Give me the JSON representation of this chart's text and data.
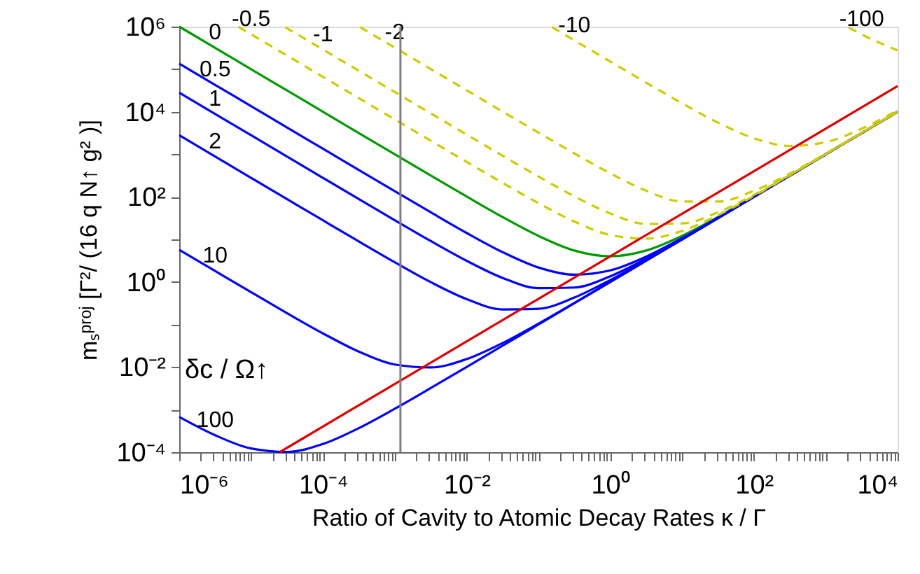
{
  "chart_data": {
    "type": "line",
    "xlabel": "Ratio of Cavity to Atomic Decay Rates κ / Γ",
    "ylabel": "mₛᵖʳᵒʲ [Γ²/ (16 q N↑ g² )]",
    "line_style": "solid",
    "log": "xy",
    "marker": "none",
    "xlim": [
      1e-06,
      10000.0
    ],
    "ylim": [
      0.0001,
      1000000.0
    ],
    "xticks": [
      {
        "value": 1e-06,
        "label": "10⁻⁶"
      },
      {
        "value": 2e-06,
        "label": null
      },
      {
        "value": 3e-06,
        "label": null
      },
      {
        "value": 4e-06,
        "label": null
      },
      {
        "value": 5e-06,
        "label": null
      },
      {
        "value": 6e-06,
        "label": null
      },
      {
        "value": 7e-06,
        "label": null
      },
      {
        "value": 8e-06,
        "label": null
      },
      {
        "value": 9e-06,
        "label": null
      },
      {
        "value": 1e-05,
        "label": null
      },
      {
        "value": 2e-05,
        "label": null
      },
      {
        "value": 3e-05,
        "label": null
      },
      {
        "value": 4e-05,
        "label": null
      },
      {
        "value": 5e-05,
        "label": null
      },
      {
        "value": 6e-05,
        "label": null
      },
      {
        "value": 7e-05,
        "label": null
      },
      {
        "value": 8e-05,
        "label": null
      },
      {
        "value": 9e-05,
        "label": null
      },
      {
        "value": 0.0001,
        "label": "10⁻⁴"
      },
      {
        "value": 0.0002,
        "label": null
      },
      {
        "value": 0.0003,
        "label": null
      },
      {
        "value": 0.0004,
        "label": null
      },
      {
        "value": 0.0005,
        "label": null
      },
      {
        "value": 0.0006,
        "label": null
      },
      {
        "value": 0.0007,
        "label": null
      },
      {
        "value": 0.0008,
        "label": null
      },
      {
        "value": 0.0009,
        "label": null
      },
      {
        "value": 0.001,
        "label": null
      },
      {
        "value": 0.002,
        "label": null
      },
      {
        "value": 0.003,
        "label": null
      },
      {
        "value": 0.004,
        "label": null
      },
      {
        "value": 0.005,
        "label": null
      },
      {
        "value": 0.006,
        "label": null
      },
      {
        "value": 0.007,
        "label": null
      },
      {
        "value": 0.008,
        "label": null
      },
      {
        "value": 0.009,
        "label": null
      },
      {
        "value": 0.01,
        "label": "10⁻²"
      },
      {
        "value": 0.02,
        "label": null
      },
      {
        "value": 0.03,
        "label": null
      },
      {
        "value": 0.04,
        "label": null
      },
      {
        "value": 0.05,
        "label": null
      },
      {
        "value": 0.06,
        "label": null
      },
      {
        "value": 0.07,
        "label": null
      },
      {
        "value": 0.08,
        "label": null
      },
      {
        "value": 0.09,
        "label": null
      },
      {
        "value": 0.1,
        "label": null
      },
      {
        "value": 0.2,
        "label": null
      },
      {
        "value": 0.3,
        "label": null
      },
      {
        "value": 0.4,
        "label": null
      },
      {
        "value": 0.5,
        "label": null
      },
      {
        "value": 0.6,
        "label": null
      },
      {
        "value": 0.7,
        "label": null
      },
      {
        "value": 0.8,
        "label": null
      },
      {
        "value": 0.9,
        "label": null
      },
      {
        "value": 1,
        "label": "10⁰"
      },
      {
        "value": 2,
        "label": null
      },
      {
        "value": 3,
        "label": null
      },
      {
        "value": 4,
        "label": null
      },
      {
        "value": 5,
        "label": null
      },
      {
        "value": 6,
        "label": null
      },
      {
        "value": 7,
        "label": null
      },
      {
        "value": 8,
        "label": null
      },
      {
        "value": 9,
        "label": null
      },
      {
        "value": 10,
        "label": null
      },
      {
        "value": 20,
        "label": null
      },
      {
        "value": 30,
        "label": null
      },
      {
        "value": 40,
        "label": null
      },
      {
        "value": 50,
        "label": null
      },
      {
        "value": 60,
        "label": null
      },
      {
        "value": 70,
        "label": null
      },
      {
        "value": 80,
        "label": null
      },
      {
        "value": 90,
        "label": null
      },
      {
        "value": 100,
        "label": "10²"
      },
      {
        "value": 200,
        "label": null
      },
      {
        "value": 300,
        "label": null
      },
      {
        "value": 400,
        "label": null
      },
      {
        "value": 500,
        "label": null
      },
      {
        "value": 600,
        "label": null
      },
      {
        "value": 700,
        "label": null
      },
      {
        "value": 800,
        "label": null
      },
      {
        "value": 900,
        "label": null
      },
      {
        "value": 1000,
        "label": null
      },
      {
        "value": 2000,
        "label": null
      },
      {
        "value": 3000,
        "label": null
      },
      {
        "value": 4000,
        "label": null
      },
      {
        "value": 5000,
        "label": null
      },
      {
        "value": 6000,
        "label": null
      },
      {
        "value": 7000,
        "label": null
      },
      {
        "value": 8000,
        "label": null
      },
      {
        "value": 9000,
        "label": null
      },
      {
        "value": 10000,
        "label": "10⁴"
      }
    ],
    "yticks": [
      {
        "value": 0.0001,
        "label": "10⁻⁴"
      },
      {
        "value": 0.001,
        "label": null
      },
      {
        "value": 0.01,
        "label": "10⁻²"
      },
      {
        "value": 0.1,
        "label": null
      },
      {
        "value": 1,
        "label": "10⁰"
      },
      {
        "value": 10,
        "label": null
      },
      {
        "value": 100,
        "label": "10²"
      },
      {
        "value": 1000,
        "label": null
      },
      {
        "value": 10000,
        "label": "10⁴"
      },
      {
        "value": 100000,
        "label": null
      },
      {
        "value": 1000000,
        "label": "10⁶"
      }
    ],
    "x": [
      1e-06,
      3.16e-06,
      1e-05,
      3.16e-05,
      0.0001,
      0.000316,
      0.001,
      0.00316,
      0.01,
      0.0316,
      0.1,
      0.316,
      1,
      3.16,
      10,
      31.6,
      100,
      316,
      1000,
      3162,
      10000
    ],
    "series": [
      {
        "name": "0",
        "color": "#009900",
        "values": [
          1000000,
          316000,
          100000,
          31600,
          10000,
          3162,
          1002,
          318,
          102,
          33.6,
          12.1,
          5.48,
          4,
          5.48,
          12.1,
          33.6,
          102,
          318,
          null,
          null,
          null
        ]
      },
      {
        "name": "0.5",
        "color": "#0000ff",
        "values": [
          135000,
          42700,
          13500,
          4270,
          1350,
          427,
          136,
          43.5,
          14.2,
          5.04,
          2.19,
          1.48,
          1.87,
          3.94,
          10.75,
          32.3,
          100.7,
          317,
          1001,
          3163,
          10000
        ]
      },
      {
        "name": "1",
        "color": "#0000ff",
        "values": [
          28000,
          8860,
          2800,
          886,
          280,
          88.9,
          28.3,
          9.2,
          3.15,
          1.25,
          0.715,
          0.74,
          1.36,
          3.51,
          10.3,
          31.9,
          100.3,
          316,
          1000,
          3162,
          10000
        ]
      },
      {
        "name": "2",
        "color": "#0000ff",
        "values": [
          2800,
          886,
          280,
          88.7,
          28.1,
          8.96,
          2.91,
          0.995,
          0.396,
          0.226,
          0.234,
          0.431,
          1.11,
          3.27,
          10.1,
          31.7,
          100.1,
          316,
          1000,
          3162,
          10000
        ]
      },
      {
        "name": "10",
        "color": "#0000ff",
        "values": [
          5.7,
          1.81,
          0.575,
          0.185,
          0.062,
          0.0231,
          0.0115,
          0.0098,
          0.0154,
          0.0366,
          0.105,
          0.321,
          1.005,
          3.17,
          10,
          31.6,
          100,
          316,
          1000,
          3162,
          10000
        ]
      },
      {
        "name": "100",
        "color": "#0000ff",
        "values": [
          0.000676,
          0.000251,
          0.0001225,
          0.0001014,
          0.000156,
          0.000368,
          0.00105,
          0.00321,
          0.01005,
          0.0317,
          0.1,
          0.316,
          1,
          3.16,
          10,
          31.6,
          100,
          316,
          1000,
          3162,
          10000
        ]
      },
      {
        "name": "-0.5",
        "color": "#cccc00",
        "line_style": "dashed",
        "x": [
          6.7e-06,
          1e-05,
          3.16e-05,
          0.0001,
          0.000316,
          0.001,
          0.00316,
          0.01,
          0.0316,
          0.1,
          0.316,
          1,
          3.16,
          10,
          31.6,
          100,
          316,
          1000,
          3162,
          10000
        ],
        "values": [
          985000,
          660000,
          209000,
          66000,
          20900,
          6600,
          2090,
          665,
          214,
          71.2,
          26.3,
          12.7,
          10.4,
          15.8,
          37,
          105,
          321,
          1005,
          3167,
          10000
        ]
      },
      {
        "name": "-1",
        "color": "#cccc00",
        "line_style": "dashed",
        "x": [
          3e-05,
          0.0001,
          0.000316,
          0.001,
          0.00316,
          0.01,
          0.0316,
          0.1,
          0.316,
          1,
          3.16,
          10,
          31.6,
          100,
          316,
          1000,
          3162,
          10000
        ],
        "values": [
          967000,
          290000,
          91800,
          29000,
          9190,
          2910,
          928,
          301,
          103,
          40.8,
          23.1,
          23.7,
          43.3,
          111,
          327,
          1011,
          3173,
          10000
        ]
      },
      {
        "name": "-2",
        "color": "#cccc00",
        "line_style": "dashed",
        "x": [
          0.00033,
          0.001,
          0.00316,
          0.01,
          0.0316,
          0.1,
          0.316,
          1,
          3.16,
          10,
          31.6,
          100,
          316,
          1000,
          3162,
          10000
        ],
        "values": [
          970000,
          320000,
          101000,
          32000,
          10100,
          3240,
          1049,
          357,
          140,
          77.8,
          77.5,
          139,
          353,
          1036,
          3198,
          10000
        ]
      },
      {
        "name": "-10",
        "color": "#cccc00",
        "line_style": "dashed",
        "x": [
          0.155,
          0.316,
          1,
          3.16,
          10,
          31.6,
          100,
          316,
          1000,
          3162,
          10000
        ],
        "values": [
          969000,
          475000,
          151000,
          48200,
          15800,
          5550,
          2380,
          1570,
          1925,
          4000,
          10800
        ]
      },
      {
        "name": "-100",
        "color": "#cccc00",
        "line_style": "dashed",
        "x": [
          2100,
          3162,
          10000
        ],
        "values": [
          944000,
          657000,
          275000
        ]
      },
      {
        "color": "#dd0000",
        "x": [
          2.5e-05,
          10000
        ],
        "values": [
          0.0001,
          40000
        ]
      }
    ],
    "ref_lines": [
      {
        "axis": "x",
        "value": 0.0012,
        "color": "#808080"
      }
    ],
    "annotations": [
      "δc / Ω↑"
    ]
  }
}
